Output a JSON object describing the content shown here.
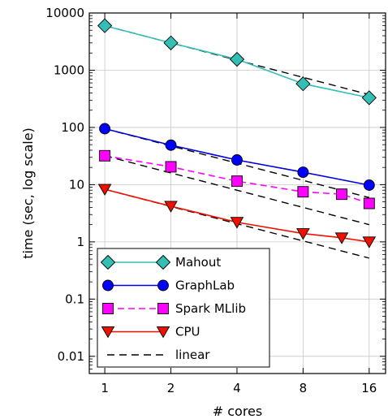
{
  "chart_data": {
    "type": "line",
    "title": "",
    "xlabel": "# cores",
    "ylabel": "time (sec, log scale)",
    "x_scale": "log2",
    "y_scale": "log10",
    "xlim": [
      0.85,
      19
    ],
    "ylim": [
      0.005,
      10000
    ],
    "x_ticks": [
      1,
      2,
      4,
      8,
      16
    ],
    "x_tick_labels": [
      "1",
      "2",
      "4",
      "8",
      "16"
    ],
    "y_ticks": [
      0.01,
      0.1,
      1,
      10,
      100,
      1000,
      10000
    ],
    "y_tick_labels": [
      "0.01",
      "0.1",
      "1",
      "10",
      "100",
      "1000",
      "10000"
    ],
    "grid": true,
    "legend_position": "lower-left",
    "series": [
      {
        "name": "Mahout",
        "color": "#33bfb5",
        "marker": "diamond",
        "marker_fill": "#33bfb5",
        "line_style": "solid",
        "x": [
          1,
          2,
          4,
          8,
          16
        ],
        "y": [
          6000,
          3000,
          1550,
          580,
          330
        ]
      },
      {
        "name": "GraphLab",
        "color": "#0000dd",
        "marker": "circle",
        "marker_fill": "#0000ff",
        "line_style": "solid",
        "x": [
          1,
          2,
          4,
          8,
          16
        ],
        "y": [
          95,
          49,
          27,
          16.5,
          9.8
        ]
      },
      {
        "name": "Spark MLlib",
        "color": "#ff00ff",
        "marker": "square",
        "marker_fill": "#ff00ff",
        "line_style": "dashed",
        "x": [
          1,
          2,
          4,
          8,
          12,
          16
        ],
        "y": [
          32,
          20.5,
          11.5,
          7.5,
          6.8,
          4.7
        ]
      },
      {
        "name": "CPU",
        "color": "#ee1100",
        "marker": "triangle-down",
        "marker_fill": "#ee1100",
        "line_style": "solid",
        "x": [
          1,
          2,
          4,
          8,
          12,
          16
        ],
        "y": [
          8.3,
          4.2,
          2.2,
          1.4,
          1.18,
          1.0
        ]
      },
      {
        "name": "linear",
        "color": "#000000",
        "marker": "none",
        "line_style": "dashed",
        "segments": [
          {
            "x": [
              1,
              16
            ],
            "y": [
              6000,
              375
            ]
          },
          {
            "x": [
              1,
              16
            ],
            "y": [
              95,
              5.94
            ]
          },
          {
            "x": [
              1,
              16
            ],
            "y": [
              32,
              2.0
            ]
          },
          {
            "x": [
              1,
              16
            ],
            "y": [
              8.3,
              0.52
            ]
          }
        ]
      }
    ]
  }
}
